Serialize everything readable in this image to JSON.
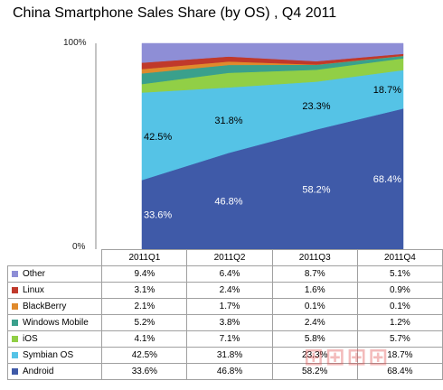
{
  "chart_data": {
    "type": "area",
    "stacked": true,
    "percent": true,
    "title": "China Smartphone Sales Share (by OS) , Q4 2011",
    "categories": [
      "2011Q1",
      "2011Q2",
      "2011Q3",
      "2011Q4"
    ],
    "y_ticks": [
      "100%",
      "0%"
    ],
    "ylim": [
      0,
      100
    ],
    "legend_placement": "data table below chart",
    "series": [
      {
        "name": "Android",
        "color": "#3f5aa8",
        "values": [
          33.6,
          46.8,
          58.2,
          68.4
        ],
        "labels": [
          "33.6%",
          "46.8%",
          "58.2%",
          "68.4%"
        ]
      },
      {
        "name": "Symbian OS",
        "color": "#55c3e6",
        "values": [
          42.5,
          31.8,
          23.3,
          18.7
        ],
        "labels": [
          "42.5%",
          "31.8%",
          "23.3%",
          "18.7%"
        ]
      },
      {
        "name": "iOS",
        "color": "#91cf46",
        "values": [
          4.1,
          7.1,
          5.8,
          5.7
        ],
        "labels": [
          "4.1%",
          "7.1%",
          "5.8%",
          "5.7%"
        ]
      },
      {
        "name": "Windows Mobile",
        "color": "#3aa08c",
        "values": [
          5.2,
          3.8,
          2.4,
          1.2
        ],
        "labels": [
          "5.2%",
          "3.8%",
          "2.4%",
          "1.2%"
        ]
      },
      {
        "name": "BlackBerry",
        "color": "#e08a2c",
        "values": [
          2.1,
          1.7,
          0.1,
          0.1
        ],
        "labels": [
          "2.1%",
          "1.7%",
          "0.1%",
          "0.1%"
        ]
      },
      {
        "name": "Linux",
        "color": "#c0392b",
        "values": [
          3.1,
          2.4,
          1.6,
          0.9
        ],
        "labels": [
          "3.1%",
          "2.4%",
          "1.6%",
          "0.9%"
        ]
      },
      {
        "name": "Other",
        "color": "#8e8ed6",
        "values": [
          9.4,
          6.4,
          8.7,
          5.1
        ],
        "labels": [
          "9.4%",
          "6.4%",
          "8.7%",
          "5.1%"
        ]
      }
    ],
    "table_row_order": [
      "Other",
      "Linux",
      "BlackBerry",
      "Windows Mobile",
      "iOS",
      "Symbian OS",
      "Android"
    ],
    "grid": false
  }
}
